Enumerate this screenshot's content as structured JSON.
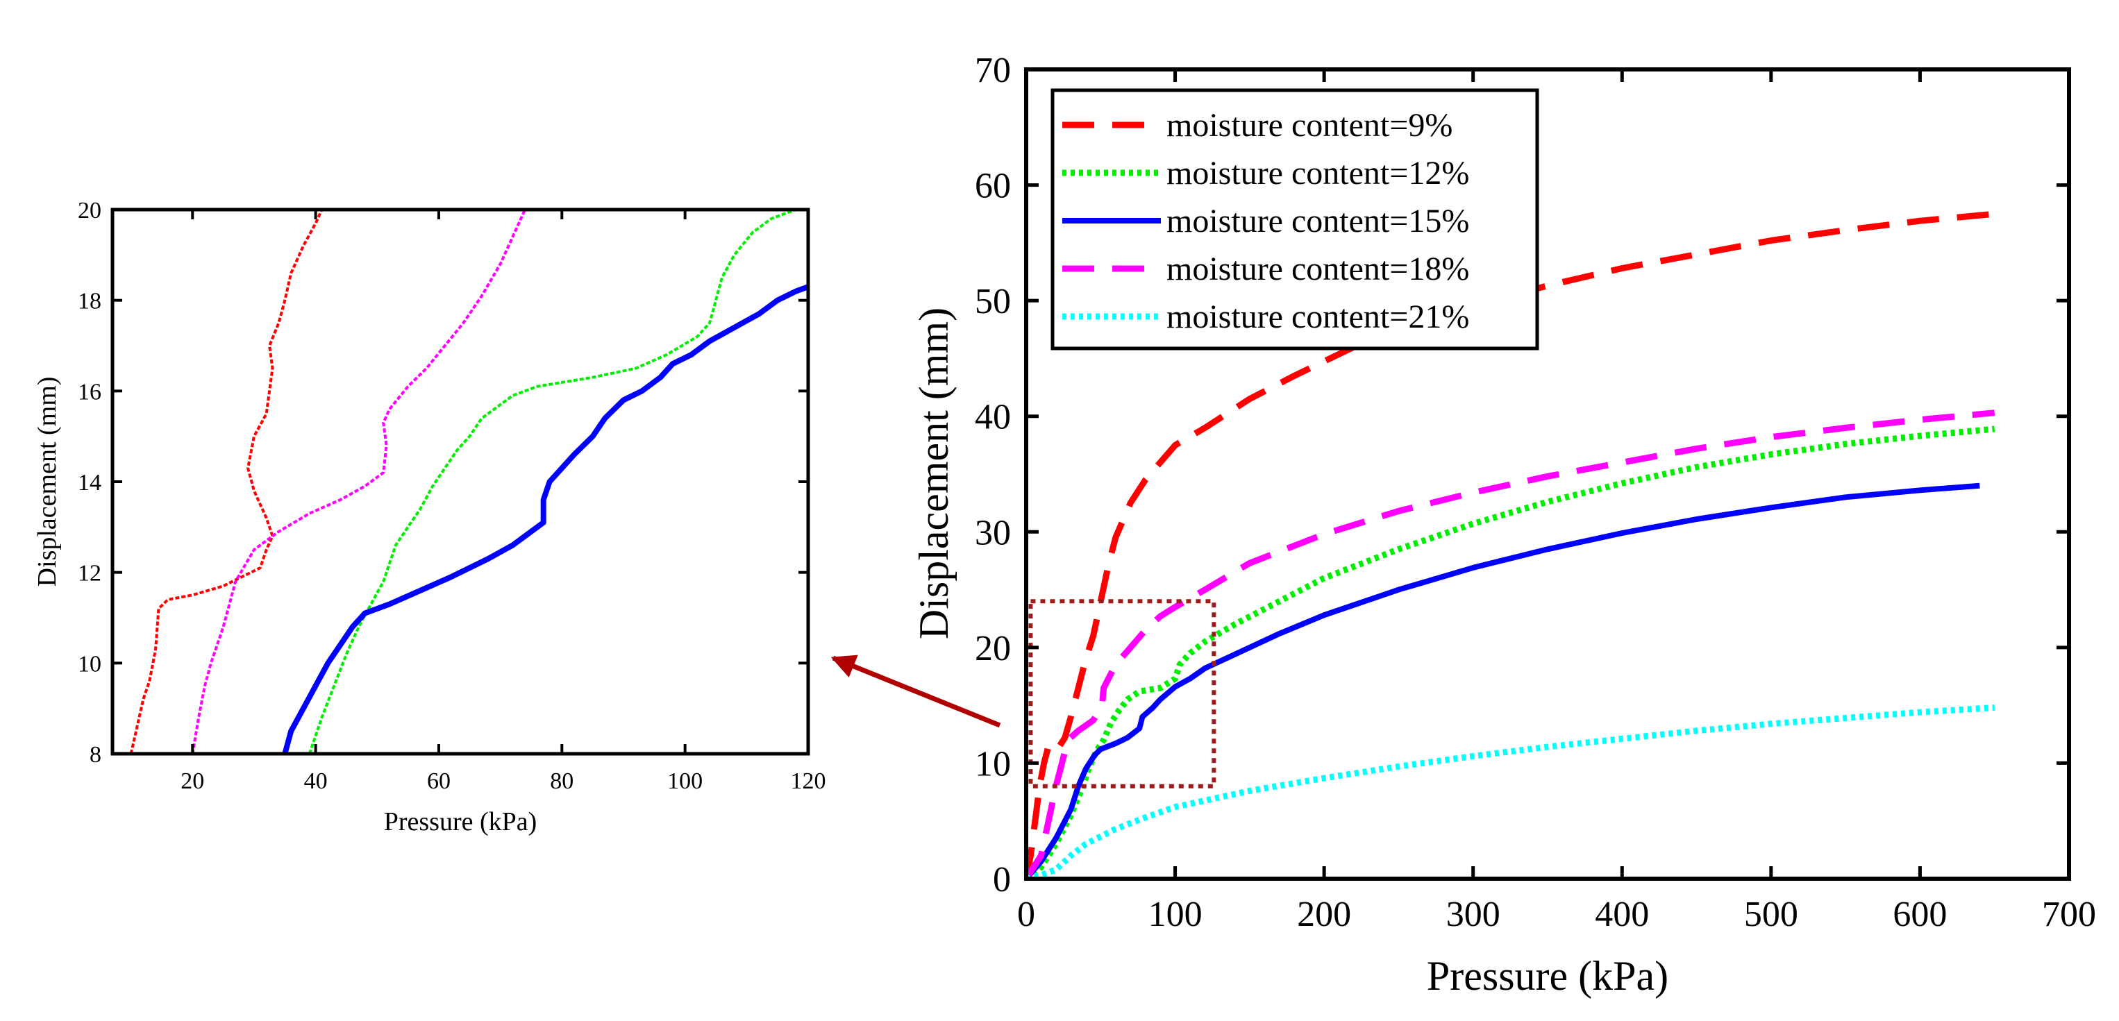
{
  "chart_data": [
    {
      "id": "main",
      "type": "line",
      "title": "",
      "xlabel": "Pressure (kPa)",
      "ylabel": "Displacement (mm)",
      "xlim": [
        0,
        700
      ],
      "ylim": [
        0,
        70
      ],
      "xticks": [
        0,
        100,
        200,
        300,
        400,
        500,
        600,
        700
      ],
      "yticks": [
        0,
        10,
        20,
        30,
        40,
        50,
        60,
        70
      ],
      "grid": false,
      "legend_position": "top-left",
      "zoom_box": {
        "x": [
          3,
          126
        ],
        "y": [
          8,
          24
        ]
      },
      "series": [
        {
          "name": "moisture content=9%",
          "color": "#ff0000",
          "style": "dashed",
          "points": [
            [
              0,
              0
            ],
            [
              3,
              2
            ],
            [
              6,
              5
            ],
            [
              9,
              8
            ],
            [
              12,
              10
            ],
            [
              15,
              11.5
            ],
            [
              18,
              11.8
            ],
            [
              22,
              11.4
            ],
            [
              26,
              12.2
            ],
            [
              30,
              14
            ],
            [
              34,
              16
            ],
            [
              40,
              19
            ],
            [
              45,
              21
            ],
            [
              50,
              24
            ],
            [
              55,
              27
            ],
            [
              60,
              29.5
            ],
            [
              70,
              32.5
            ],
            [
              80,
              34.5
            ],
            [
              90,
              36
            ],
            [
              100,
              37.5
            ],
            [
              120,
              39
            ],
            [
              150,
              41.5
            ],
            [
              180,
              43.5
            ],
            [
              220,
              46
            ],
            [
              260,
              48
            ],
            [
              300,
              49.5
            ],
            [
              350,
              51.3
            ],
            [
              400,
              52.8
            ],
            [
              450,
              54
            ],
            [
              500,
              55.2
            ],
            [
              550,
              56.1
            ],
            [
              600,
              56.9
            ],
            [
              650,
              57.5
            ]
          ]
        },
        {
          "name": "moisture content=12%",
          "color": "#00ee00",
          "style": "dotted",
          "points": [
            [
              0,
              0
            ],
            [
              10,
              1
            ],
            [
              20,
              3
            ],
            [
              30,
              5.5
            ],
            [
              38,
              8
            ],
            [
              42,
              9.5
            ],
            [
              47,
              11
            ],
            [
              52,
              12
            ],
            [
              57,
              13.5
            ],
            [
              62,
              14.5
            ],
            [
              68,
              15.5
            ],
            [
              76,
              16.2
            ],
            [
              90,
              16.5
            ],
            [
              100,
              17.3
            ],
            [
              103,
              18.5
            ],
            [
              110,
              19.5
            ],
            [
              120,
              20.5
            ],
            [
              140,
              22
            ],
            [
              170,
              24
            ],
            [
              200,
              26
            ],
            [
              250,
              28.5
            ],
            [
              300,
              30.7
            ],
            [
              350,
              32.6
            ],
            [
              400,
              34.2
            ],
            [
              450,
              35.6
            ],
            [
              500,
              36.7
            ],
            [
              550,
              37.6
            ],
            [
              600,
              38.3
            ],
            [
              650,
              38.9
            ]
          ]
        },
        {
          "name": "moisture content=15%",
          "color": "#0000ff",
          "style": "solid",
          "points": [
            [
              0,
              0
            ],
            [
              10,
              1.5
            ],
            [
              20,
              3.5
            ],
            [
              30,
              6
            ],
            [
              35,
              8
            ],
            [
              40,
              9.5
            ],
            [
              46,
              10.7
            ],
            [
              50,
              11.2
            ],
            [
              60,
              11.7
            ],
            [
              68,
              12.2
            ],
            [
              76,
              13
            ],
            [
              78,
              14
            ],
            [
              85,
              14.8
            ],
            [
              90,
              15.5
            ],
            [
              100,
              16.6
            ],
            [
              110,
              17.3
            ],
            [
              120,
              18.2
            ],
            [
              140,
              19.4
            ],
            [
              170,
              21.2
            ],
            [
              200,
              22.8
            ],
            [
              250,
              25
            ],
            [
              300,
              26.9
            ],
            [
              350,
              28.5
            ],
            [
              400,
              29.9
            ],
            [
              450,
              31.1
            ],
            [
              500,
              32.1
            ],
            [
              550,
              33
            ],
            [
              600,
              33.6
            ],
            [
              640,
              34
            ]
          ]
        },
        {
          "name": "moisture content=18%",
          "color": "#ff00ff",
          "style": "dashed",
          "points": [
            [
              0,
              0
            ],
            [
              10,
              2
            ],
            [
              20,
              8
            ],
            [
              24,
              10
            ],
            [
              28,
              12
            ],
            [
              35,
              12.8
            ],
            [
              45,
              13.7
            ],
            [
              51,
              15
            ],
            [
              52,
              16.5
            ],
            [
              60,
              18.5
            ],
            [
              70,
              20
            ],
            [
              80,
              21.5
            ],
            [
              90,
              22.7
            ],
            [
              100,
              23.5
            ],
            [
              120,
              25
            ],
            [
              150,
              27.3
            ],
            [
              200,
              29.8
            ],
            [
              250,
              31.8
            ],
            [
              300,
              33.4
            ],
            [
              350,
              34.8
            ],
            [
              400,
              36
            ],
            [
              450,
              37.2
            ],
            [
              500,
              38.2
            ],
            [
              550,
              39
            ],
            [
              600,
              39.7
            ],
            [
              650,
              40.3
            ]
          ]
        },
        {
          "name": "moisture content=21%",
          "color": "#00ffff",
          "style": "dotted",
          "points": [
            [
              0,
              0
            ],
            [
              10,
              0.3
            ],
            [
              20,
              0.8
            ],
            [
              30,
              2
            ],
            [
              40,
              3
            ],
            [
              60,
              4.3
            ],
            [
              80,
              5.3
            ],
            [
              100,
              6.2
            ],
            [
              150,
              7.6
            ],
            [
              200,
              8.7
            ],
            [
              250,
              9.7
            ],
            [
              300,
              10.6
            ],
            [
              350,
              11.4
            ],
            [
              400,
              12.1
            ],
            [
              450,
              12.8
            ],
            [
              500,
              13.4
            ],
            [
              550,
              13.9
            ],
            [
              600,
              14.4
            ],
            [
              650,
              14.8
            ]
          ]
        }
      ]
    },
    {
      "id": "inset",
      "type": "line",
      "title": "",
      "xlabel": "Pressure (kPa)",
      "ylabel": "Displacement (mm)",
      "xlim": [
        7,
        120
      ],
      "ylim": [
        8,
        20
      ],
      "xticks": [
        20,
        40,
        60,
        80,
        100,
        120
      ],
      "yticks": [
        8,
        10,
        12,
        14,
        16,
        18,
        20
      ],
      "grid": false,
      "series": [
        {
          "name": "moisture content=9%",
          "color": "#ff0000",
          "points": [
            [
              10,
              8
            ],
            [
              11,
              8.6
            ],
            [
              12,
              9.2
            ],
            [
              13,
              9.6
            ],
            [
              14,
              10.3
            ],
            [
              14.5,
              11.2
            ],
            [
              16,
              11.4
            ],
            [
              20,
              11.5
            ],
            [
              25,
              11.7
            ],
            [
              28,
              11.9
            ],
            [
              31,
              12.1
            ],
            [
              32,
              12.5
            ],
            [
              33,
              12.8
            ],
            [
              32,
              13.2
            ],
            [
              30,
              13.8
            ],
            [
              29,
              14.3
            ],
            [
              30,
              15
            ],
            [
              32,
              15.5
            ],
            [
              32.5,
              16
            ],
            [
              33,
              16.5
            ],
            [
              32.5,
              17
            ],
            [
              34,
              17.5
            ],
            [
              35,
              18
            ],
            [
              36,
              18.6
            ],
            [
              38,
              19.2
            ],
            [
              40,
              19.7
            ],
            [
              41,
              20
            ]
          ]
        },
        {
          "name": "moisture content=12%",
          "color": "#00ee00",
          "points": [
            [
              39,
              8
            ],
            [
              41,
              8.8
            ],
            [
              43,
              9.5
            ],
            [
              45,
              10.2
            ],
            [
              47,
              10.8
            ],
            [
              49,
              11.3
            ],
            [
              51,
              11.8
            ],
            [
              53,
              12.6
            ],
            [
              55,
              13
            ],
            [
              57,
              13.4
            ],
            [
              59,
              13.9
            ],
            [
              61,
              14.3
            ],
            [
              63,
              14.7
            ],
            [
              65,
              15
            ],
            [
              67,
              15.4
            ],
            [
              69,
              15.6
            ],
            [
              72,
              15.9
            ],
            [
              76,
              16.1
            ],
            [
              85,
              16.3
            ],
            [
              92,
              16.5
            ],
            [
              97,
              16.8
            ],
            [
              102,
              17.2
            ],
            [
              104,
              17.5
            ],
            [
              106,
              18.5
            ],
            [
              108,
              19
            ],
            [
              111,
              19.5
            ],
            [
              114,
              19.8
            ],
            [
              118,
              20
            ]
          ]
        },
        {
          "name": "moisture content=15%",
          "color": "#0000ff",
          "points": [
            [
              35,
              8
            ],
            [
              36,
              8.5
            ],
            [
              38,
              9
            ],
            [
              40,
              9.5
            ],
            [
              42,
              10
            ],
            [
              44,
              10.4
            ],
            [
              46,
              10.8
            ],
            [
              48,
              11.1
            ],
            [
              52,
              11.3
            ],
            [
              57,
              11.6
            ],
            [
              62,
              11.9
            ],
            [
              68,
              12.3
            ],
            [
              72,
              12.6
            ],
            [
              75,
              12.9
            ],
            [
              77,
              13.1
            ],
            [
              77,
              13.6
            ],
            [
              78,
              14
            ],
            [
              80,
              14.3
            ],
            [
              82,
              14.6
            ],
            [
              85,
              15
            ],
            [
              87,
              15.4
            ],
            [
              90,
              15.8
            ],
            [
              93,
              16
            ],
            [
              96,
              16.3
            ],
            [
              98,
              16.6
            ],
            [
              101,
              16.8
            ],
            [
              104,
              17.1
            ],
            [
              108,
              17.4
            ],
            [
              112,
              17.7
            ],
            [
              115,
              18
            ],
            [
              118,
              18.2
            ],
            [
              120,
              18.3
            ]
          ]
        },
        {
          "name": "moisture content=18%",
          "color": "#ff00ff",
          "points": [
            [
              20,
              8
            ],
            [
              21,
              8.8
            ],
            [
              22,
              9.5
            ],
            [
              23,
              10
            ],
            [
              25,
              10.8
            ],
            [
              27,
              11.8
            ],
            [
              30,
              12.5
            ],
            [
              34,
              12.9
            ],
            [
              39,
              13.3
            ],
            [
              44,
              13.6
            ],
            [
              48,
              13.9
            ],
            [
              51,
              14.2
            ],
            [
              51.5,
              14.8
            ],
            [
              51,
              15.3
            ],
            [
              52,
              15.6
            ],
            [
              55,
              16.1
            ],
            [
              58,
              16.5
            ],
            [
              61,
              17
            ],
            [
              64,
              17.5
            ],
            [
              67,
              18.1
            ],
            [
              70,
              18.8
            ],
            [
              72,
              19.4
            ],
            [
              74,
              20
            ]
          ]
        }
      ]
    }
  ]
}
